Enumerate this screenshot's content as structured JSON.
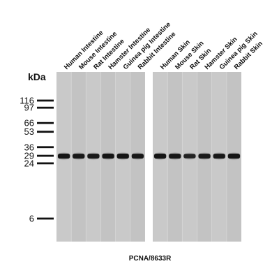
{
  "unit_label": "kDa",
  "antibody_label": "PCNA/8633R",
  "band_marker_kda": 29,
  "marker_band_color": "#111111",
  "membrane_color": "#c6c6c6",
  "panels": [
    {
      "lanes": [
        "Human Intestine",
        "Mouse Intestine",
        "Rat Intestine",
        "Hamster Intestine",
        "Guinea pig Intestine",
        "Rabbit Intestine"
      ]
    },
    {
      "lanes": [
        "Human Skin",
        "Mouse Skin",
        "Rat Skin",
        "Hamster Skin",
        "Guinea pig Skin",
        "Rabbit Skin"
      ]
    }
  ],
  "markers": [
    {
      "label": "116",
      "kda": 116
    },
    {
      "label": "97",
      "kda": 97
    },
    {
      "label": "66",
      "kda": 66
    },
    {
      "label": "53",
      "kda": 53
    },
    {
      "label": "36",
      "kda": 36
    },
    {
      "label": "29",
      "kda": 29
    },
    {
      "label": "24",
      "kda": 24
    },
    {
      "label": "6",
      "kda": 6
    }
  ],
  "band_intensity": [
    [
      0.92,
      0.88,
      0.86,
      0.92,
      0.94,
      0.88
    ],
    [
      0.94,
      0.9,
      0.7,
      0.86,
      0.88,
      0.92
    ]
  ]
}
